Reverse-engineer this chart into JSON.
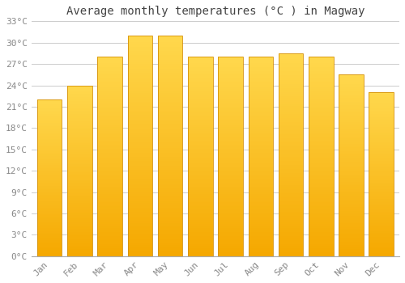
{
  "title": "Average monthly temperatures (°C ) in Magway",
  "months": [
    "Jan",
    "Feb",
    "Mar",
    "Apr",
    "May",
    "Jun",
    "Jul",
    "Aug",
    "Sep",
    "Oct",
    "Nov",
    "Dec"
  ],
  "values": [
    22,
    24,
    28,
    31,
    31,
    28,
    28,
    28,
    28.5,
    28,
    25.5,
    23
  ],
  "bar_color_top": "#FFD84D",
  "bar_color_bottom": "#F5A800",
  "bar_edge_color": "#D4910A",
  "background_color": "#FFFFFF",
  "grid_color": "#CCCCCC",
  "ylim": [
    0,
    33
  ],
  "yticks": [
    0,
    3,
    6,
    9,
    12,
    15,
    18,
    21,
    24,
    27,
    30,
    33
  ],
  "ytick_labels": [
    "0°C",
    "3°C",
    "6°C",
    "9°C",
    "12°C",
    "15°C",
    "18°C",
    "21°C",
    "24°C",
    "27°C",
    "30°C",
    "33°C"
  ],
  "title_fontsize": 10,
  "tick_fontsize": 8,
  "title_color": "#444444",
  "tick_color": "#888888",
  "bar_width": 0.82
}
